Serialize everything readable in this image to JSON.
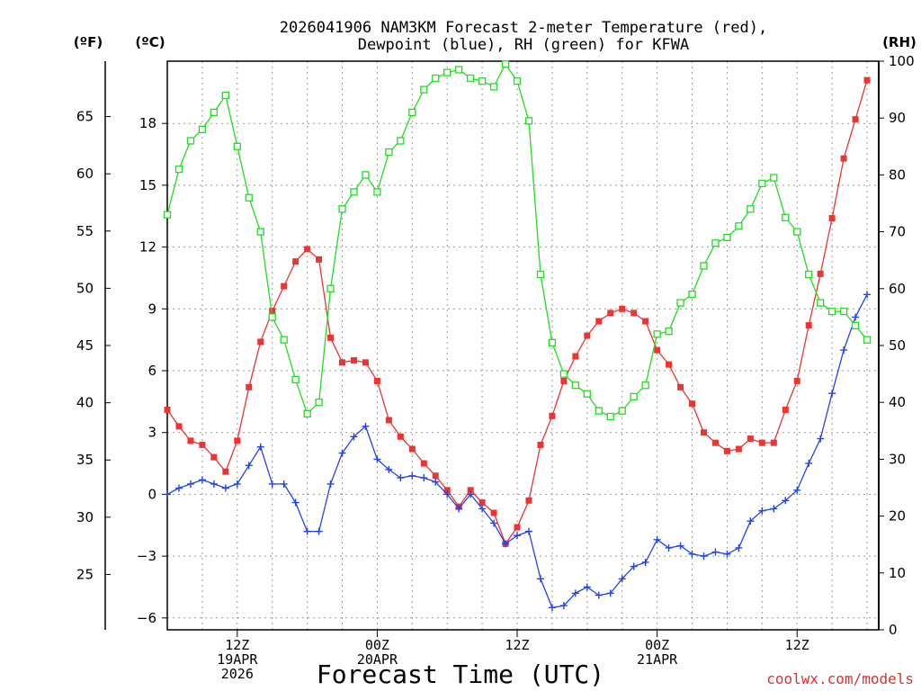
{
  "chart_data": {
    "type": "line",
    "title_line1": "2026041906 NAM3KM Forecast 2-meter Temperature (red),",
    "title_line2": "Dewpoint (blue), RH (green) for KFWA",
    "xlabel": "Forecast Time (UTC)",
    "credit": "coolwx.com/models",
    "axis_unit_labels": {
      "fahrenheit": "(ºF)",
      "celsius": "(ºC)",
      "rh": "(RH)"
    },
    "x_hour_range": [
      0,
      61
    ],
    "celsius_range": [
      -6.6,
      21.1
    ],
    "rh_range": [
      0,
      100
    ],
    "celsius_ticks": [
      18,
      15,
      12,
      9,
      6,
      3,
      0,
      -3,
      -6
    ],
    "fahrenheit_ticks": [
      65,
      60,
      55,
      50,
      45,
      40,
      35,
      30,
      25
    ],
    "rh_ticks": [
      100,
      90,
      80,
      70,
      60,
      50,
      40,
      30,
      20,
      10,
      0
    ],
    "x_ticks": [
      {
        "hour": 6,
        "lines": [
          "12Z",
          "19APR",
          "2026"
        ]
      },
      {
        "hour": 18,
        "lines": [
          "00Z",
          "20APR"
        ]
      },
      {
        "hour": 30,
        "lines": [
          "12Z"
        ]
      },
      {
        "hour": 42,
        "lines": [
          "00Z",
          "21APR"
        ]
      },
      {
        "hour": 54,
        "lines": [
          "12Z"
        ]
      }
    ],
    "series": [
      {
        "name": "2-meter Temperature",
        "axis": "celsius",
        "color": "#ee3333",
        "marker": "filled-square",
        "values": [
          4.1,
          3.3,
          2.6,
          2.4,
          1.8,
          1.1,
          2.6,
          5.2,
          7.4,
          8.9,
          10.1,
          11.3,
          11.9,
          11.4,
          7.6,
          6.4,
          6.5,
          6.4,
          5.5,
          3.6,
          2.8,
          2.2,
          1.5,
          0.9,
          0.2,
          -0.6,
          0.2,
          -0.4,
          -0.9,
          -2.4,
          -1.6,
          -0.3,
          2.4,
          3.8,
          5.5,
          6.7,
          7.7,
          8.4,
          8.8,
          9.0,
          8.8,
          8.4,
          7.0,
          6.3,
          5.2,
          4.4,
          3.0,
          2.5,
          2.1,
          2.2,
          2.7,
          2.5,
          2.5,
          4.1,
          5.5,
          8.2,
          10.7,
          13.4,
          16.3,
          18.2,
          20.1
        ]
      },
      {
        "name": "Dewpoint",
        "axis": "celsius",
        "color": "#2244ee",
        "marker": "plus",
        "values": [
          0.0,
          0.3,
          0.5,
          0.7,
          0.5,
          0.3,
          0.5,
          1.4,
          2.3,
          0.5,
          0.5,
          -0.4,
          -1.8,
          -1.8,
          0.5,
          2.0,
          2.8,
          3.3,
          1.7,
          1.2,
          0.8,
          0.9,
          0.8,
          0.6,
          0.0,
          -0.7,
          0.0,
          -0.7,
          -1.4,
          -2.4,
          -2.0,
          -1.8,
          -4.1,
          -5.5,
          -5.4,
          -4.8,
          -4.5,
          -4.9,
          -4.8,
          -4.1,
          -3.5,
          -3.3,
          -2.2,
          -2.6,
          -2.5,
          -2.9,
          -3.0,
          -2.8,
          -2.9,
          -2.6,
          -1.3,
          -0.8,
          -0.7,
          -0.3,
          0.2,
          1.5,
          2.7,
          4.9,
          7.0,
          8.6,
          9.7
        ]
      },
      {
        "name": "RH",
        "axis": "rh",
        "color": "#22dd22",
        "marker": "open-square",
        "values": [
          73,
          81,
          86,
          88,
          91,
          94,
          85,
          76,
          70,
          55,
          51,
          44,
          38,
          40,
          60,
          74,
          77,
          80,
          77,
          84,
          86,
          91,
          95,
          97,
          98,
          98.5,
          97,
          96.5,
          95.5,
          99.5,
          96.5,
          89.5,
          62.5,
          50.5,
          45,
          43,
          41.5,
          38.5,
          37.5,
          38.5,
          41,
          43,
          52,
          52.5,
          57.5,
          59,
          64,
          68,
          69,
          71,
          74,
          78.5,
          79.5,
          72.5,
          70,
          62.5,
          57.5,
          56,
          56,
          53.5,
          51
        ]
      }
    ]
  }
}
